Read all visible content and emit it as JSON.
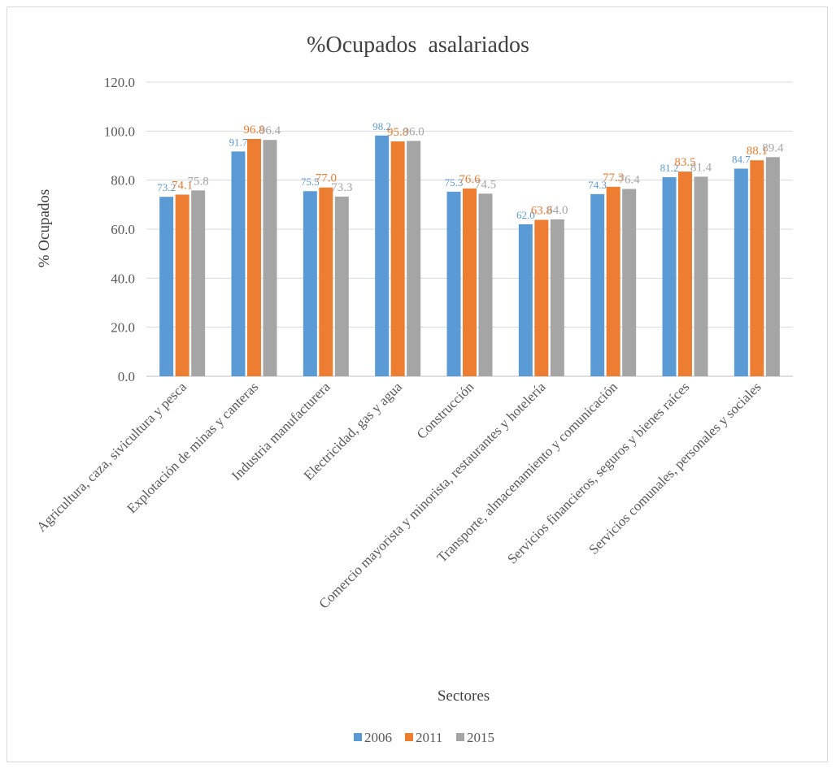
{
  "chart_data": {
    "type": "bar",
    "title": "%Ocupados  asalariados",
    "xlabel": "Sectores",
    "ylabel": "% Ocupados",
    "ylim": [
      0,
      120
    ],
    "yticks": [
      "0.0",
      "20.0",
      "40.0",
      "60.0",
      "80.0",
      "100.0",
      "120.0"
    ],
    "grid": true,
    "legend_position": "bottom",
    "categories": [
      "Agricultura, caza, sivicultura y pesca",
      "Explotación de minas y canteras",
      "Industria manufacturera",
      "Electricidad, gas y agua",
      "Construcción",
      "Comercio mayorista y minorista, restaurantes y hotelería",
      "Transporte, almacenamiento y comunicación",
      "Servicios financieros, seguros y bienes raíces",
      "Servicios comunales, personales y sociales"
    ],
    "series": [
      {
        "name": "2006",
        "color": "#5b9bd5",
        "values": [
          73.2,
          91.7,
          75.5,
          98.2,
          75.3,
          62.0,
          74.3,
          81.2,
          84.7
        ],
        "labels": [
          "73.2",
          "91.7",
          "75.5",
          "98.2",
          "75.3",
          "62.0",
          "74.3",
          "81.2",
          "84.7"
        ]
      },
      {
        "name": "2011",
        "color": "#ed7d31",
        "values": [
          74.1,
          96.8,
          77.0,
          95.8,
          76.6,
          63.8,
          77.3,
          83.5,
          88.1
        ],
        "labels": [
          "74.1",
          "96.8",
          "77.0",
          "95.8",
          "76.6",
          "63.8",
          "77.3",
          "83.5",
          "88.1"
        ]
      },
      {
        "name": "2015",
        "color": "#a5a5a5",
        "values": [
          75.8,
          96.4,
          73.3,
          96.0,
          74.5,
          64.0,
          76.4,
          81.4,
          89.4
        ],
        "labels": [
          "75.8",
          "96.4",
          "73.3",
          "96.0",
          "74.5",
          "64.0",
          "76.4",
          "81.4",
          "89.4"
        ]
      }
    ]
  }
}
